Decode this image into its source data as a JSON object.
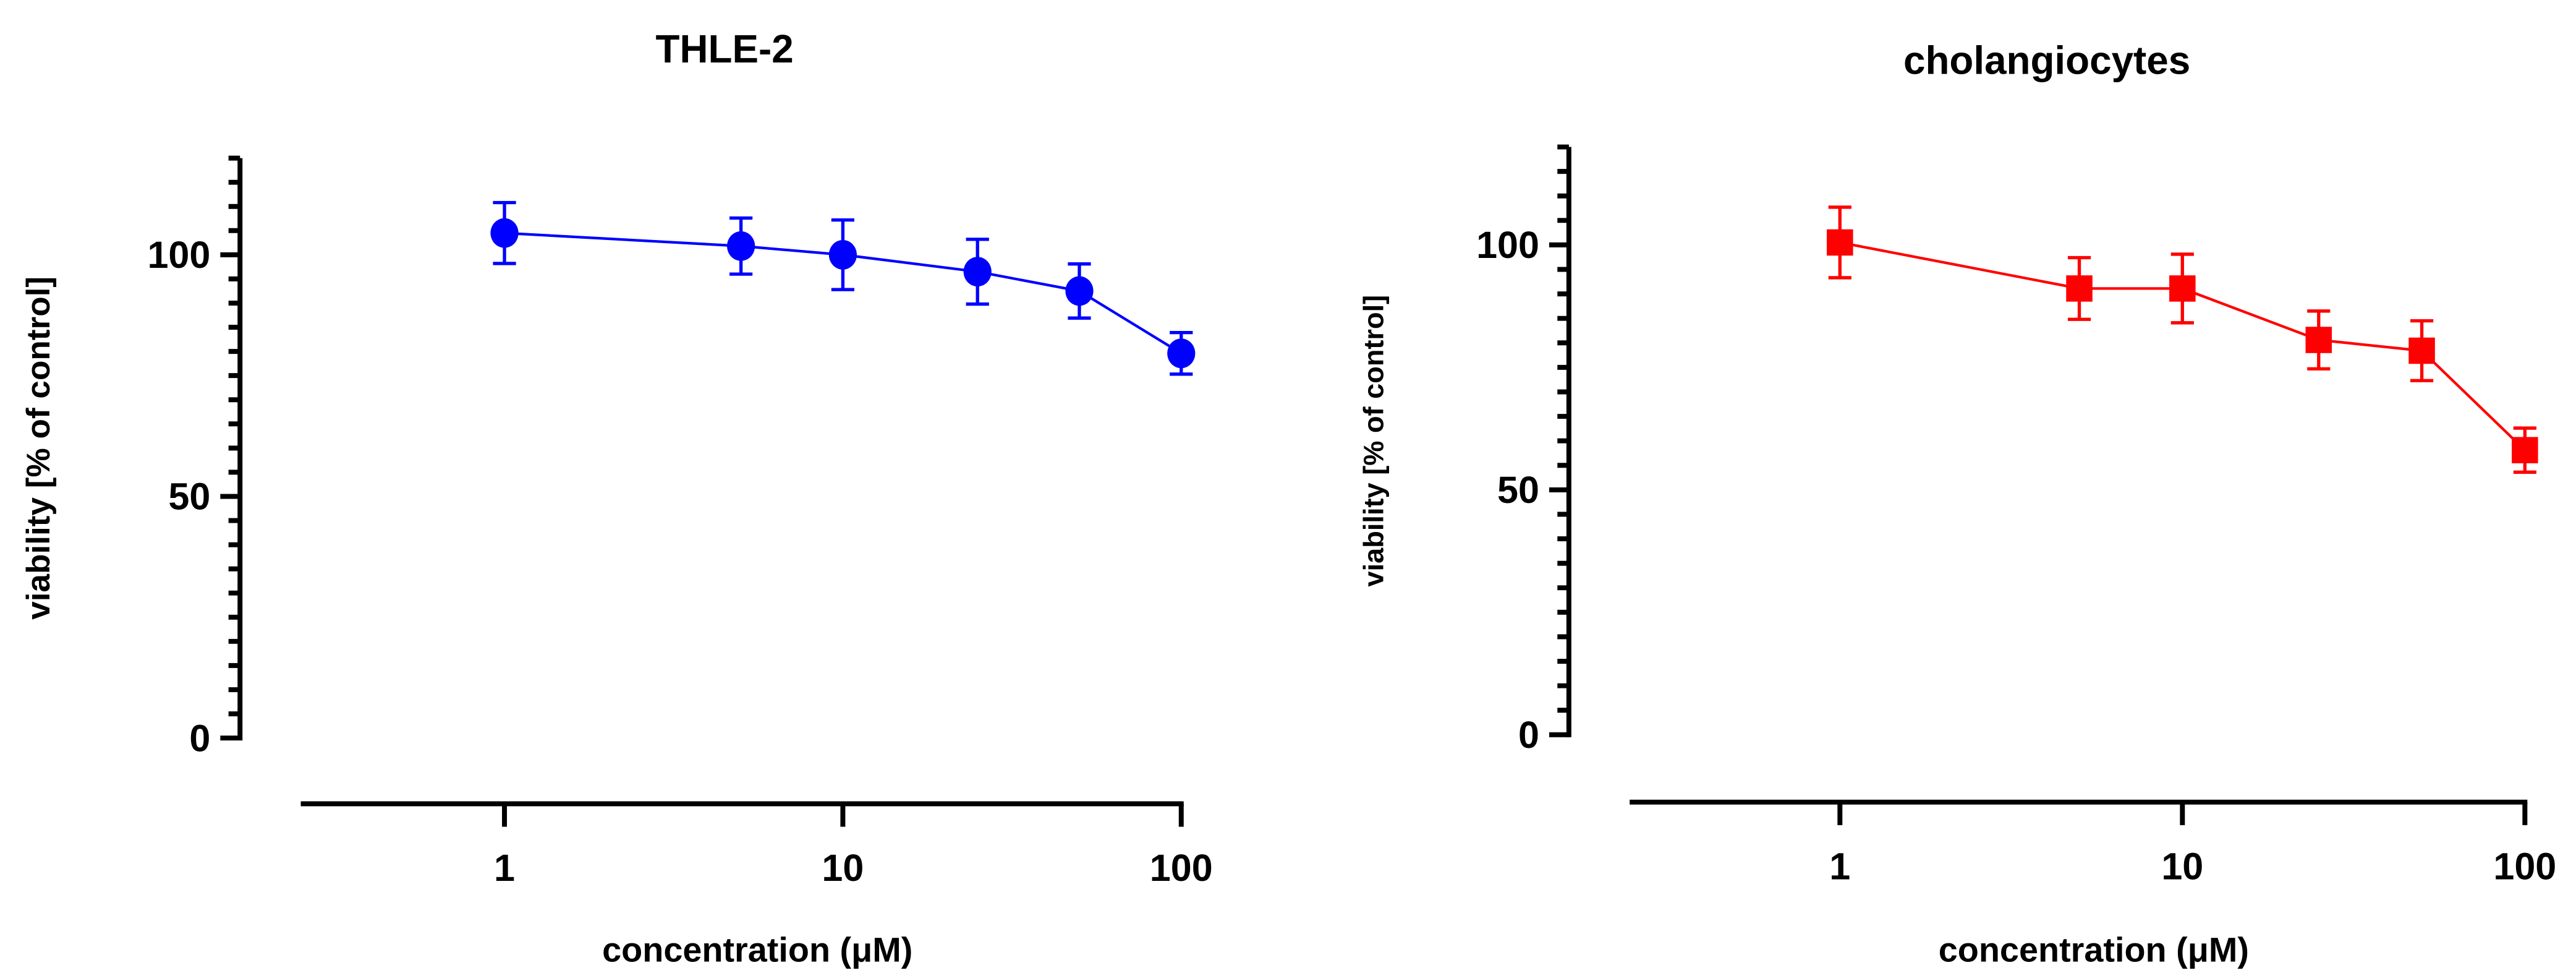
{
  "chart_data": [
    {
      "type": "line",
      "title": "THLE-2",
      "xlabel": "concentration  (μM)",
      "ylabel": "viability [% of control]",
      "xscale": "log",
      "xlim": [
        0.25,
        100
      ],
      "ylim": [
        0,
        120
      ],
      "xticks": [
        "1",
        "10",
        "100"
      ],
      "xtick_values": [
        1,
        10,
        100
      ],
      "yticks": [
        "0",
        "50",
        "100"
      ],
      "ytick_values": [
        0,
        50,
        100
      ],
      "minor_ytick_step": 5,
      "grid": false,
      "series": [
        {
          "name": "THLE-2",
          "color": "#0000ff",
          "marker": "circle",
          "x": [
            1,
            5,
            10,
            25,
            50,
            100
          ],
          "y": [
            104.5,
            101.8,
            100,
            96.5,
            92.5,
            79.6
          ],
          "error": [
            6.3,
            5.8,
            7.2,
            6.7,
            5.6,
            4.3
          ]
        }
      ]
    },
    {
      "type": "line",
      "title": "cholangiocytes",
      "xlabel": "concentration  (μM)",
      "ylabel": "viability [% of control]",
      "xscale": "log",
      "xlim": [
        0.25,
        100
      ],
      "ylim": [
        0,
        120
      ],
      "xticks": [
        "1",
        "10",
        "100"
      ],
      "xtick_values": [
        1,
        10,
        100
      ],
      "yticks": [
        "0",
        "50",
        "100"
      ],
      "ytick_values": [
        0,
        50,
        100
      ],
      "minor_ytick_step": 5,
      "grid": false,
      "series": [
        {
          "name": "cholangiocytes",
          "color": "#ff0000",
          "marker": "square",
          "x": [
            1,
            5,
            10,
            25,
            50,
            100
          ],
          "y": [
            100.5,
            91.1,
            91.1,
            80.6,
            78.4,
            58.1
          ],
          "error": [
            7.2,
            6.3,
            7.0,
            5.9,
            6.1,
            4.5
          ]
        }
      ]
    }
  ]
}
